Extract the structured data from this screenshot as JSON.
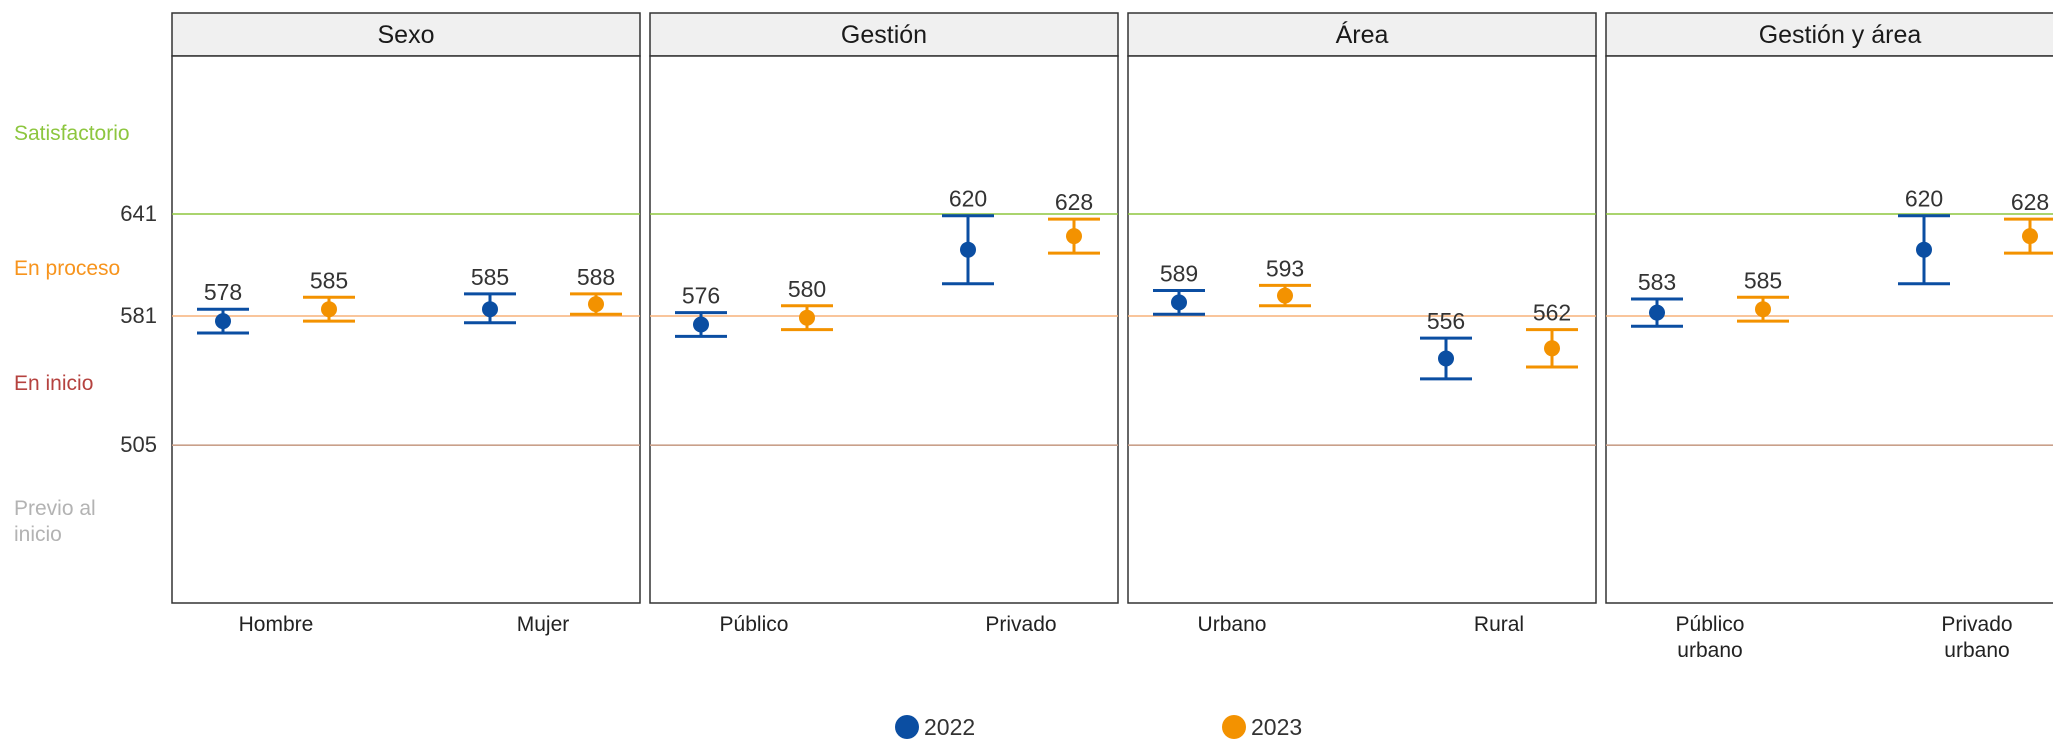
{
  "chart_data": {
    "type": "errorbar",
    "y_ticks": [
      505,
      581,
      641
    ],
    "levels": [
      {
        "label": "Satisfactorio",
        "color": "#8dc63f"
      },
      {
        "label": "En proceso",
        "color": "#f7941d"
      },
      {
        "label": "En inicio",
        "color": "#b5423f"
      },
      {
        "label": "Previo al inicio",
        "color": "#b3b3b3"
      }
    ],
    "level_lines": [
      {
        "value": 641,
        "color": "#8dc63f"
      },
      {
        "value": 581,
        "color": "#f7b27a"
      },
      {
        "value": 505,
        "color": "#c9a08a"
      }
    ],
    "series": [
      {
        "name": "2022",
        "color": "#0b4ea2"
      },
      {
        "name": "2023",
        "color": "#f39200"
      }
    ],
    "panels": [
      {
        "title": "Sexo",
        "categories": [
          {
            "label": "Hombre",
            "points": [
              {
                "value": 578,
                "low": 571,
                "high": 585
              },
              {
                "value": 585,
                "low": 578,
                "high": 592
              }
            ]
          },
          {
            "label": "Mujer",
            "points": [
              {
                "value": 585,
                "low": 577,
                "high": 594
              },
              {
                "value": 588,
                "low": 582,
                "high": 594
              }
            ]
          }
        ]
      },
      {
        "title": "Gestión",
        "categories": [
          {
            "label": "Público",
            "points": [
              {
                "value": 576,
                "low": 569,
                "high": 583
              },
              {
                "value": 580,
                "low": 573,
                "high": 587
              }
            ]
          },
          {
            "label": "Privado",
            "points": [
              {
                "value": 620,
                "low": 600,
                "high": 640
              },
              {
                "value": 628,
                "low": 618,
                "high": 638
              }
            ]
          }
        ]
      },
      {
        "title": "Área",
        "categories": [
          {
            "label": "Urbano",
            "points": [
              {
                "value": 589,
                "low": 582,
                "high": 596
              },
              {
                "value": 593,
                "low": 587,
                "high": 599
              }
            ]
          },
          {
            "label": "Rural",
            "points": [
              {
                "value": 556,
                "low": 544,
                "high": 568
              },
              {
                "value": 562,
                "low": 551,
                "high": 573
              }
            ]
          }
        ]
      },
      {
        "title": "Gestión y área",
        "categories": [
          {
            "label": "Público urbano",
            "points": [
              {
                "value": 583,
                "low": 575,
                "high": 591
              },
              {
                "value": 585,
                "low": 578,
                "high": 592
              }
            ]
          },
          {
            "label": "Privado urbano",
            "points": [
              {
                "value": 620,
                "low": 600,
                "high": 640
              },
              {
                "value": 628,
                "low": 618,
                "high": 638
              }
            ]
          }
        ]
      }
    ]
  }
}
